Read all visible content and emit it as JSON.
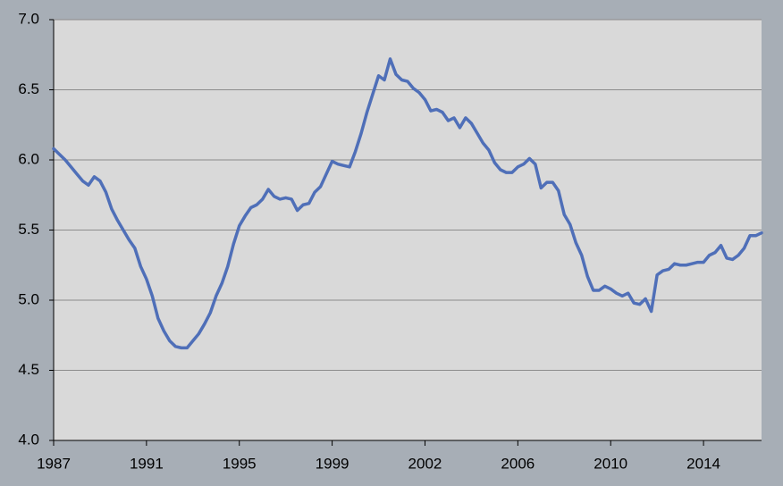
{
  "chart_data": {
    "type": "line",
    "categories": [
      "1987",
      null,
      null,
      null,
      null,
      null,
      null,
      null,
      null,
      null,
      null,
      null,
      null,
      null,
      null,
      null,
      "1991",
      null,
      null,
      null,
      null,
      null,
      null,
      null,
      null,
      null,
      null,
      null,
      null,
      null,
      null,
      null,
      "1995",
      null,
      null,
      null,
      null,
      null,
      null,
      null,
      null,
      null,
      null,
      null,
      null,
      null,
      null,
      null,
      "1999",
      null,
      null,
      null,
      null,
      null,
      null,
      null,
      null,
      null,
      null,
      null,
      null,
      null,
      null,
      null,
      "2002",
      null,
      null,
      null,
      null,
      null,
      null,
      null,
      null,
      null,
      null,
      null,
      null,
      null,
      null,
      null,
      "2006",
      null,
      null,
      null,
      null,
      null,
      null,
      null,
      null,
      null,
      null,
      null,
      null,
      null,
      null,
      null,
      "2010",
      null,
      null,
      null,
      null,
      null,
      null,
      null,
      null,
      null,
      null,
      null,
      null,
      null,
      null,
      null,
      "2014",
      null,
      null,
      null,
      null,
      null,
      null,
      null,
      null,
      null,
      null
    ],
    "series": [
      {
        "color": "#4f6fb8",
        "values": [
          6.08,
          6.04,
          6.0,
          5.95,
          5.9,
          5.85,
          5.82,
          5.88,
          5.85,
          5.77,
          5.65,
          5.57,
          5.5,
          5.43,
          5.37,
          5.24,
          5.15,
          5.03,
          4.87,
          4.78,
          4.71,
          4.67,
          4.66,
          4.66,
          4.71,
          4.76,
          4.83,
          4.91,
          5.03,
          5.12,
          5.24,
          5.4,
          5.53,
          5.6,
          5.66,
          5.68,
          5.72,
          5.79,
          5.74,
          5.72,
          5.73,
          5.72,
          5.64,
          5.68,
          5.69,
          5.77,
          5.81,
          5.9,
          5.99,
          5.97,
          5.96,
          5.95,
          6.06,
          6.19,
          6.34,
          6.47,
          6.6,
          6.57,
          6.72,
          6.61,
          6.57,
          6.56,
          6.51,
          6.48,
          6.43,
          6.35,
          6.36,
          6.34,
          6.28,
          6.3,
          6.23,
          6.3,
          6.26,
          6.19,
          6.12,
          6.07,
          5.98,
          5.93,
          5.91,
          5.91,
          5.95,
          5.97,
          6.01,
          5.97,
          5.8,
          5.84,
          5.84,
          5.78,
          5.61,
          5.54,
          5.41,
          5.32,
          5.17,
          5.07,
          5.07,
          5.1,
          5.08,
          5.05,
          5.03,
          5.05,
          4.98,
          4.97,
          5.01,
          4.92,
          5.18,
          5.21,
          5.22,
          5.26,
          5.25,
          5.25,
          5.26,
          5.27,
          5.27,
          5.32,
          5.34,
          5.39,
          5.3,
          5.29,
          5.32,
          5.37,
          5.46,
          5.46,
          5.48
        ]
      }
    ],
    "ylim": [
      4,
      7
    ],
    "yticks": [
      {
        "value": 4,
        "label": "4.0"
      },
      4.5,
      {
        "value": 5,
        "label": "5.0"
      },
      5.5,
      {
        "value": 6,
        "label": "6.0"
      },
      6.5,
      {
        "value": 7,
        "label": "7.0"
      }
    ],
    "grid": true
  }
}
